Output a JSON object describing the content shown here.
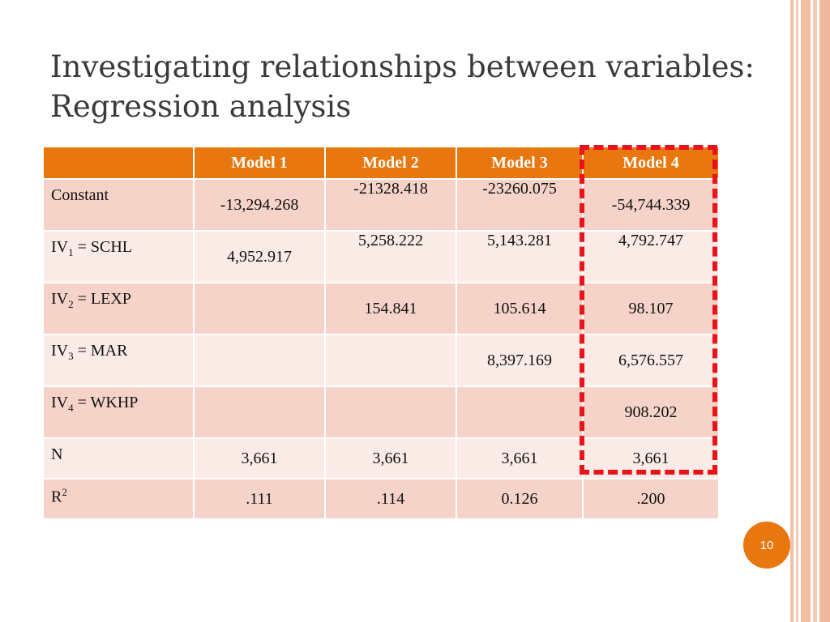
{
  "slide": {
    "title": "Investigating relationships between variables: Regression analysis",
    "page_number": "10"
  },
  "table": {
    "columns": [
      "",
      "Model 1",
      "Model 2",
      "Model 3",
      "Model 4"
    ],
    "rows": [
      {
        "label": "Constant",
        "values": [
          "-13,294.268",
          "-21328.418",
          "-23260.075",
          "-54,744.339"
        ]
      },
      {
        "label_prefix": "IV",
        "label_sub": "1",
        "label_suffix": " = SCHL",
        "values": [
          "4,952.917",
          "5,258.222",
          "5,143.281",
          "4,792.747"
        ]
      },
      {
        "label_prefix": "IV",
        "label_sub": "2",
        "label_suffix": " = LEXP",
        "values": [
          "",
          "154.841",
          "105.614",
          "98.107"
        ]
      },
      {
        "label_prefix": "IV",
        "label_sub": "3",
        "label_suffix": " = MAR",
        "values": [
          "",
          "",
          "8,397.169",
          "6,576.557"
        ]
      },
      {
        "label_prefix": "IV",
        "label_sub": "4",
        "label_suffix": " = WKHP",
        "values": [
          "",
          "",
          "",
          "908.202"
        ]
      },
      {
        "label": "N",
        "values": [
          "3,661",
          "3,661",
          "3,661",
          "3,661"
        ]
      },
      {
        "label_prefix": "R",
        "label_sup": "2",
        "values": [
          ".111",
          ".114",
          "0.126",
          ".200"
        ]
      }
    ]
  },
  "colors": {
    "header": "#e9770f",
    "row_dark": "#f6d3c8",
    "row_light": "#fbebe6",
    "highlight": "#e8141b"
  }
}
